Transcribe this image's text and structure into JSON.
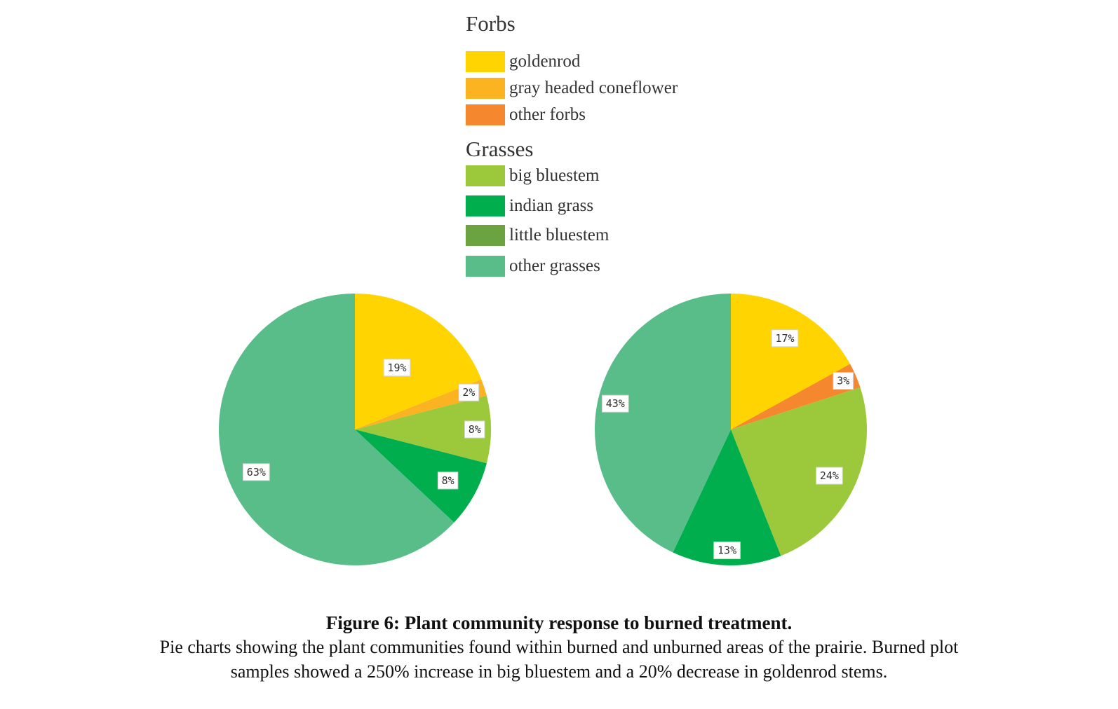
{
  "legend": {
    "forbs_heading": "Forbs",
    "grasses_heading": "Grasses",
    "items": [
      {
        "label": "goldenrod",
        "color": "#FFD400"
      },
      {
        "label": "gray headed coneflower",
        "color": "#FBB321"
      },
      {
        "label": "other forbs",
        "color": "#F5882F"
      },
      {
        "label": "big bluestem",
        "color": "#9BC93B"
      },
      {
        "label": "indian grass",
        "color": "#00AE4D"
      },
      {
        "label": "little bluestem",
        "color": "#6BA340"
      },
      {
        "label": "other grasses",
        "color": "#58BD89"
      }
    ]
  },
  "chart_data": [
    {
      "type": "pie",
      "title": "",
      "slices": [
        {
          "name": "goldenrod",
          "value": 19,
          "label": "19%",
          "color": "#FFD400"
        },
        {
          "name": "gray headed coneflower",
          "value": 2,
          "label": "2%",
          "color": "#FBB321"
        },
        {
          "name": "big bluestem",
          "value": 8,
          "label": "8%",
          "color": "#9BC93B"
        },
        {
          "name": "indian grass",
          "value": 8,
          "label": "8%",
          "color": "#00AE4D"
        },
        {
          "name": "other grasses",
          "value": 63,
          "label": "63%",
          "color": "#58BD89"
        }
      ]
    },
    {
      "type": "pie",
      "title": "",
      "slices": [
        {
          "name": "goldenrod",
          "value": 17,
          "label": "17%",
          "color": "#FFD400"
        },
        {
          "name": "other forbs",
          "value": 3,
          "label": "3%",
          "color": "#F5882F"
        },
        {
          "name": "big bluestem",
          "value": 24,
          "label": "24%",
          "color": "#9BC93B"
        },
        {
          "name": "indian grass",
          "value": 13,
          "label": "13%",
          "color": "#00AE4D"
        },
        {
          "name": "other grasses",
          "value": 43,
          "label": "43%",
          "color": "#58BD89"
        }
      ]
    }
  ],
  "caption": {
    "title": "Figure 6: Plant community response to burned treatment.",
    "line1": "Pie charts showing the plant communities found within burned and unburned areas of the prairie. Burned plot",
    "line2": "samples showed a 250% increase in big bluestem and a 20% decrease in goldenrod stems."
  }
}
